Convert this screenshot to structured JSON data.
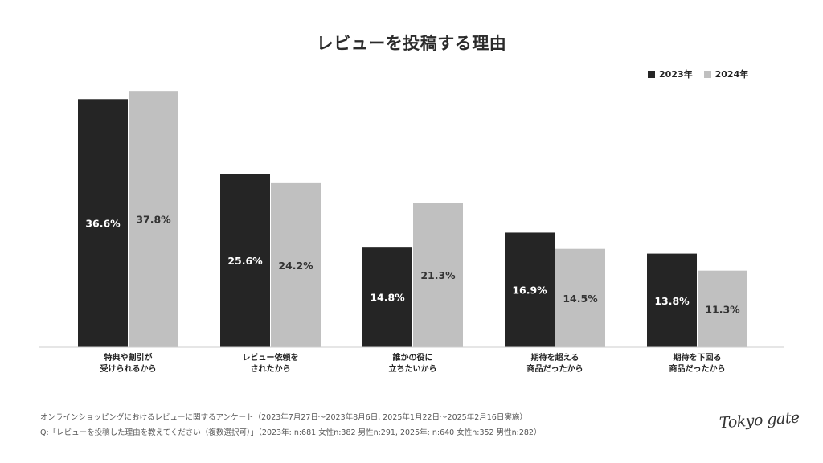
{
  "chart_data": {
    "type": "bar",
    "title": "レビューを投稿する理由",
    "categories": [
      [
        "特典や割引が",
        "受けられるから"
      ],
      [
        "レビュー依頼を",
        "されたから"
      ],
      [
        "誰かの役に",
        "立ちたいから"
      ],
      [
        "期待を超える",
        "商品だったから"
      ],
      [
        "期待を下回る",
        "商品だったから"
      ]
    ],
    "series": [
      {
        "name": "2023年",
        "values": [
          36.6,
          25.6,
          14.8,
          16.9,
          13.8
        ],
        "color": "#252525",
        "label_color": "#ffffff"
      },
      {
        "name": "2024年",
        "values": [
          37.8,
          24.2,
          21.3,
          14.5,
          11.3
        ],
        "color": "#c0c0c0",
        "label_color": "#333333"
      }
    ],
    "value_suffix": "%",
    "ylim": [
      0,
      40
    ],
    "legend_position": "top-right",
    "grid": false
  },
  "legend": {
    "item_2023": "2023年",
    "item_2024": "2024年"
  },
  "footnotes": {
    "survey": "オンラインショッピングにおけるレビューに関するアンケート（2023年7月27日〜2023年8月6日, 2025年1月22日〜2025年2月16日実施）",
    "question": "Q:「レビューを投稿した理由を教えてください（複数選択可）」（2023年: n:681 女性n:382 男性n:291, 2025年: n:640 女性n:352 男性n:282）"
  },
  "logo_text": "Tokyo gate"
}
